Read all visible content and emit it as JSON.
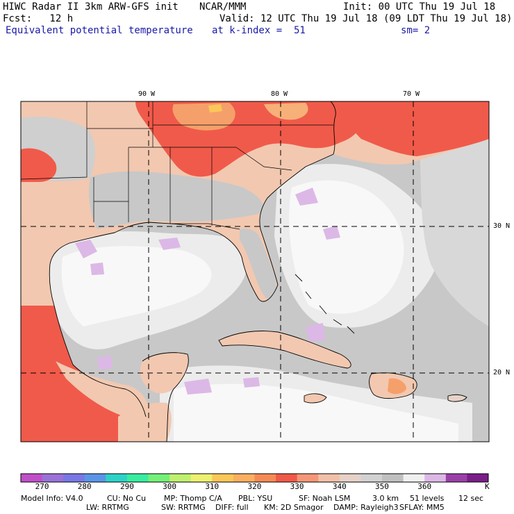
{
  "header": {
    "title": "HIWC Radar II 3km ARW-GFS init",
    "center": "NCAR/MMM",
    "init": "Init: 00 UTC Thu 19 Jul 18",
    "fcst": "Fcst:   12 h",
    "valid": "Valid: 12 UTC Thu 19 Jul 18 (09 LDT Thu 19 Jul 18)",
    "field": "Equivalent potential temperature",
    "level": "at k-index =  51",
    "smooth": "sm= 2"
  },
  "map": {
    "lon_labels": [
      "90 W",
      "80 W",
      "70 W"
    ],
    "lat_labels": [
      "30 N",
      "20 N"
    ],
    "colors": {
      "land_warm": "#f05a4a",
      "land_hot": "#f5a06a",
      "land_mild": "#f2c8b0",
      "ocean_grey": "#c8c8c8",
      "ocean_light": "#ebebeb",
      "ocean_white": "#f8f8f8",
      "lilac": "#dcb8e6"
    }
  },
  "colorbar": {
    "levels": [
      "270",
      "280",
      "290",
      "300",
      "310",
      "320",
      "330",
      "340",
      "350",
      "360"
    ],
    "unit": "K",
    "colors": [
      "#c050c8",
      "#9a72d8",
      "#7878e6",
      "#5a96e6",
      "#2ed2c8",
      "#38eca0",
      "#74f078",
      "#c0f070",
      "#eef070",
      "#fac858",
      "#fab060",
      "#f58a55",
      "#f05a48",
      "#f59678",
      "#f2c0a8",
      "#e6d2c8",
      "#d2d2d2",
      "#c0c0c0",
      "#f0f0f0",
      "#dcb8e6",
      "#9a40a8",
      "#7a1e88"
    ]
  },
  "footer": {
    "line1": [
      "Model Info: V4.0",
      "CU: No Cu",
      "MP: Thomp C/A",
      "PBL: YSU",
      "SF: Noah LSM",
      "3.0 km",
      "51 levels",
      "12 sec"
    ],
    "line2": [
      "LW: RRTMG",
      "SW: RRTMG",
      "DIFF: full",
      "KM: 2D Smagor",
      "DAMP: Rayleigh3",
      "SFLAY: MM5"
    ]
  }
}
